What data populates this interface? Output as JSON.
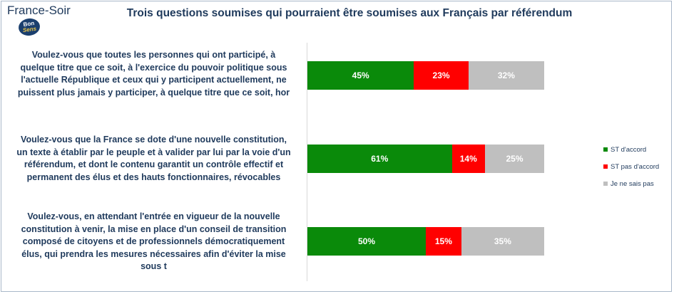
{
  "header": {
    "brand": "France-Soir",
    "logo_line1": "Bon",
    "logo_line2": "Sens"
  },
  "chart_data": {
    "type": "bar",
    "stacked": true,
    "orientation": "horizontal",
    "title": "Trois questions soumises qui pourraient être soumises aux Français par référendum",
    "categories": [
      "Voulez-vous que toutes les personnes qui ont participé, à\nquelque titre que ce soit, à l'exercice du pouvoir politique sous\nl'actuelle République et ceux qui y participent actuellement, ne\npuissent plus jamais y participer, à quelque titre que ce soit, hor",
      "Voulez-vous que la France se dote d'une nouvelle constitution,\nun texte à établir par le peuple et à valider par lui par la voie d'un\nréférendum, et dont le contenu garantit un contrôle effectif et\npermanent des élus et des hauts fonctionnaires, révocables",
      "Voulez-vous, en attendant l'entrée en vigueur de la nouvelle\nconstitution à venir, la mise en place d'un conseil de transition\ncomposé de citoyens et de professionnels démocratiquement\nélus,  qui prendra les mesures nécessaires afin d'éviter la mise\nsous t"
    ],
    "series": [
      {
        "name": "ST d'accord",
        "color": "#0a8a0a",
        "values": [
          45,
          61,
          50
        ],
        "labels": [
          "45%",
          "61%",
          "50%"
        ]
      },
      {
        "name": "ST pas d'accord",
        "color": "#ff0000",
        "values": [
          23,
          14,
          15
        ],
        "labels": [
          "23%",
          "14%",
          "15%"
        ]
      },
      {
        "name": "Je ne sais pas",
        "color": "#bfbfbf",
        "values": [
          32,
          25,
          35
        ],
        "labels": [
          "32%",
          "25%",
          "35%"
        ]
      }
    ],
    "xlim": [
      0,
      100
    ],
    "legend_position": "right"
  }
}
